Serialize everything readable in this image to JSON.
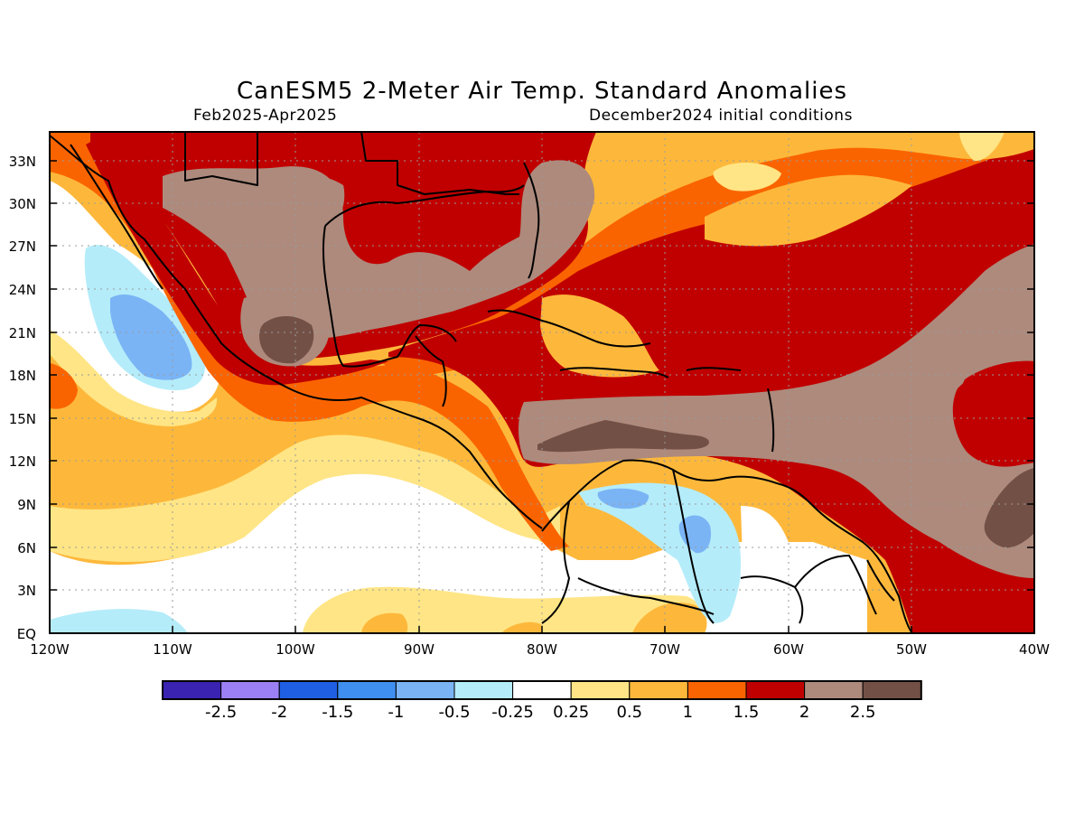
{
  "title": "CanESM5 2-Meter Air Temp. Standard Anomalies",
  "subtitle_left": "Feb2025-Apr2025",
  "subtitle_right": "December2024 initial conditions",
  "lat_labels": [
    "33N",
    "30N",
    "27N",
    "24N",
    "21N",
    "18N",
    "15N",
    "12N",
    "9N",
    "6N",
    "3N",
    "EQ"
  ],
  "lon_labels": [
    "120W",
    "110W",
    "100W",
    "90W",
    "80W",
    "70W",
    "60W",
    "50W",
    "40W"
  ],
  "legend": {
    "labels": [
      "-2.5",
      "-2",
      "-1.5",
      "-1",
      "-0.5",
      "-0.25",
      "0.25",
      "0.5",
      "1",
      "1.5",
      "2",
      "2.5"
    ],
    "colors": [
      "#3a23b0",
      "#9b80f5",
      "#1f5fe3",
      "#3f8ff0",
      "#7ab4f5",
      "#b4ecfa",
      "#ffffff",
      "#ffe585",
      "#fdb83b",
      "#fa6400",
      "#c00000",
      "#ad8a7c",
      "#735046"
    ]
  },
  "palette": {
    "dark_brown": "#735046",
    "brown": "#ad8a7c",
    "dark_red": "#c00000",
    "orange_red": "#fa6400",
    "orange": "#fdb83b",
    "light_yellow": "#ffe585",
    "white": "#ffffff",
    "light_cyan": "#b4ecfa",
    "light_blue": "#7ab4f5"
  }
}
